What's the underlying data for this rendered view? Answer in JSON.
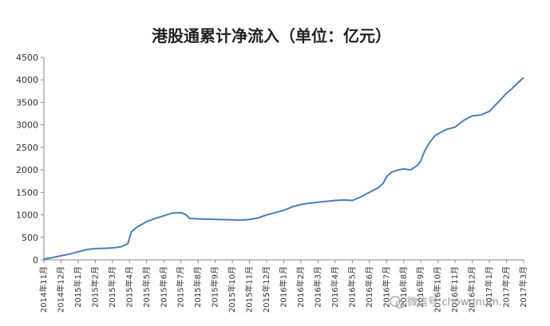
{
  "chart_data": {
    "type": "line",
    "title": "港股通累计净流入（单位：亿元）",
    "xlabel": "",
    "ylabel": "",
    "ylim": [
      0,
      4500
    ],
    "yticks": [
      0,
      500,
      1000,
      1500,
      2000,
      2500,
      3000,
      3500,
      4000,
      4500
    ],
    "grid": false,
    "legend": "none",
    "line_color": "#4a7ebb",
    "categories": [
      "2014年11月",
      "2014年12月",
      "2015年1月",
      "2015年2月",
      "2015年3月",
      "2015年4月",
      "2015年5月",
      "2015年6月",
      "2015年7月",
      "2015年8月",
      "2015年9月",
      "2015年10月",
      "2015年11月",
      "2015年12月",
      "2016年1月",
      "2016年2月",
      "2016年3月",
      "2016年4月",
      "2016年5月",
      "2016年6月",
      "2016年7月",
      "2016年8月",
      "2016年9月",
      "2016年10月",
      "2016年11月",
      "2016年12月",
      "2017年1月",
      "2017年2月",
      "2017年3月"
    ],
    "series": [
      {
        "name": "",
        "points": [
          [
            0,
            20
          ],
          [
            0.5,
            50
          ],
          [
            1,
            90
          ],
          [
            1.5,
            130
          ],
          [
            2,
            180
          ],
          [
            2.5,
            230
          ],
          [
            3,
            250
          ],
          [
            3.5,
            255
          ],
          [
            4,
            265
          ],
          [
            4.5,
            290
          ],
          [
            4.9,
            360
          ],
          [
            5.1,
            620
          ],
          [
            5.4,
            720
          ],
          [
            6,
            850
          ],
          [
            6.5,
            920
          ],
          [
            7,
            980
          ],
          [
            7.5,
            1040
          ],
          [
            8,
            1050
          ],
          [
            8.3,
            1000
          ],
          [
            8.5,
            920
          ],
          [
            9,
            910
          ],
          [
            10,
            900
          ],
          [
            11,
            890
          ],
          [
            11.5,
            880
          ],
          [
            12,
            900
          ],
          [
            12.5,
            930
          ],
          [
            13,
            1000
          ],
          [
            13.5,
            1050
          ],
          [
            14,
            1100
          ],
          [
            14.5,
            1180
          ],
          [
            15,
            1230
          ],
          [
            15.5,
            1260
          ],
          [
            16,
            1280
          ],
          [
            16.5,
            1300
          ],
          [
            17,
            1320
          ],
          [
            17.5,
            1330
          ],
          [
            18,
            1320
          ],
          [
            18.5,
            1400
          ],
          [
            19,
            1500
          ],
          [
            19.5,
            1600
          ],
          [
            19.8,
            1700
          ],
          [
            20,
            1850
          ],
          [
            20.3,
            1950
          ],
          [
            20.7,
            2000
          ],
          [
            21,
            2020
          ],
          [
            21.4,
            2000
          ],
          [
            21.8,
            2100
          ],
          [
            22,
            2200
          ],
          [
            22.2,
            2400
          ],
          [
            22.5,
            2600
          ],
          [
            22.8,
            2750
          ],
          [
            23,
            2800
          ],
          [
            23.5,
            2900
          ],
          [
            24,
            2950
          ],
          [
            24.5,
            3100
          ],
          [
            25,
            3200
          ],
          [
            25.5,
            3220
          ],
          [
            26,
            3300
          ],
          [
            26.5,
            3500
          ],
          [
            27,
            3700
          ],
          [
            27.3,
            3800
          ],
          [
            27.7,
            3950
          ],
          [
            28,
            4050
          ]
        ]
      }
    ]
  },
  "watermark": {
    "icon": "wechat-icon",
    "text": "微信号:chowqnum..."
  }
}
